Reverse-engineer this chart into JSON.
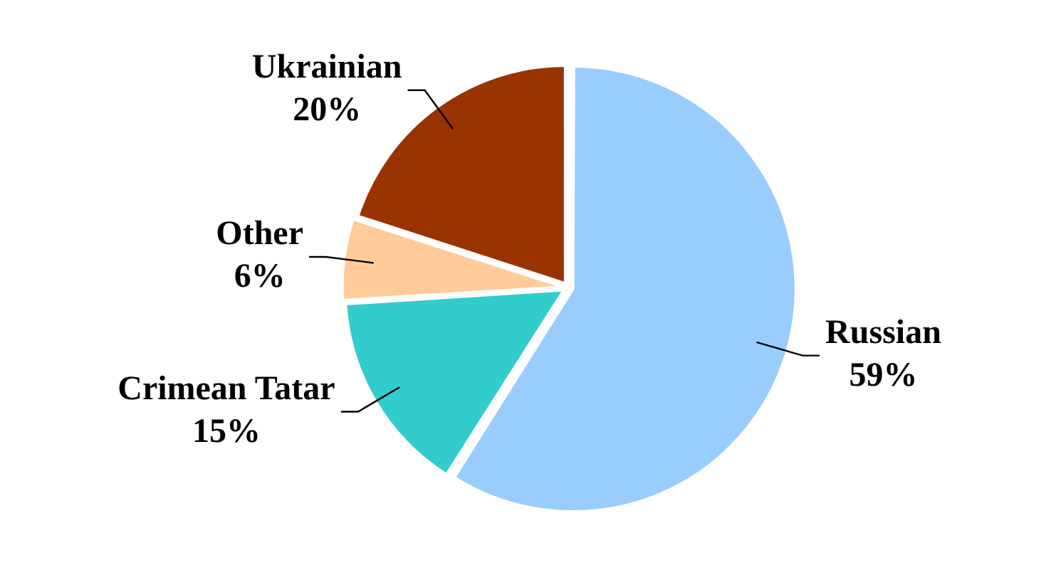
{
  "chart_data": {
    "type": "pie",
    "categories": [
      "Russian",
      "Crimean Tatar",
      "Other",
      "Ukrainian"
    ],
    "values": [
      59,
      15,
      6,
      20
    ],
    "colors": [
      "#99ccff",
      "#33cccc",
      "#ffcc99",
      "#993300"
    ],
    "value_labels": [
      "59%",
      "15%",
      "6%",
      "20%"
    ],
    "legend": false
  }
}
